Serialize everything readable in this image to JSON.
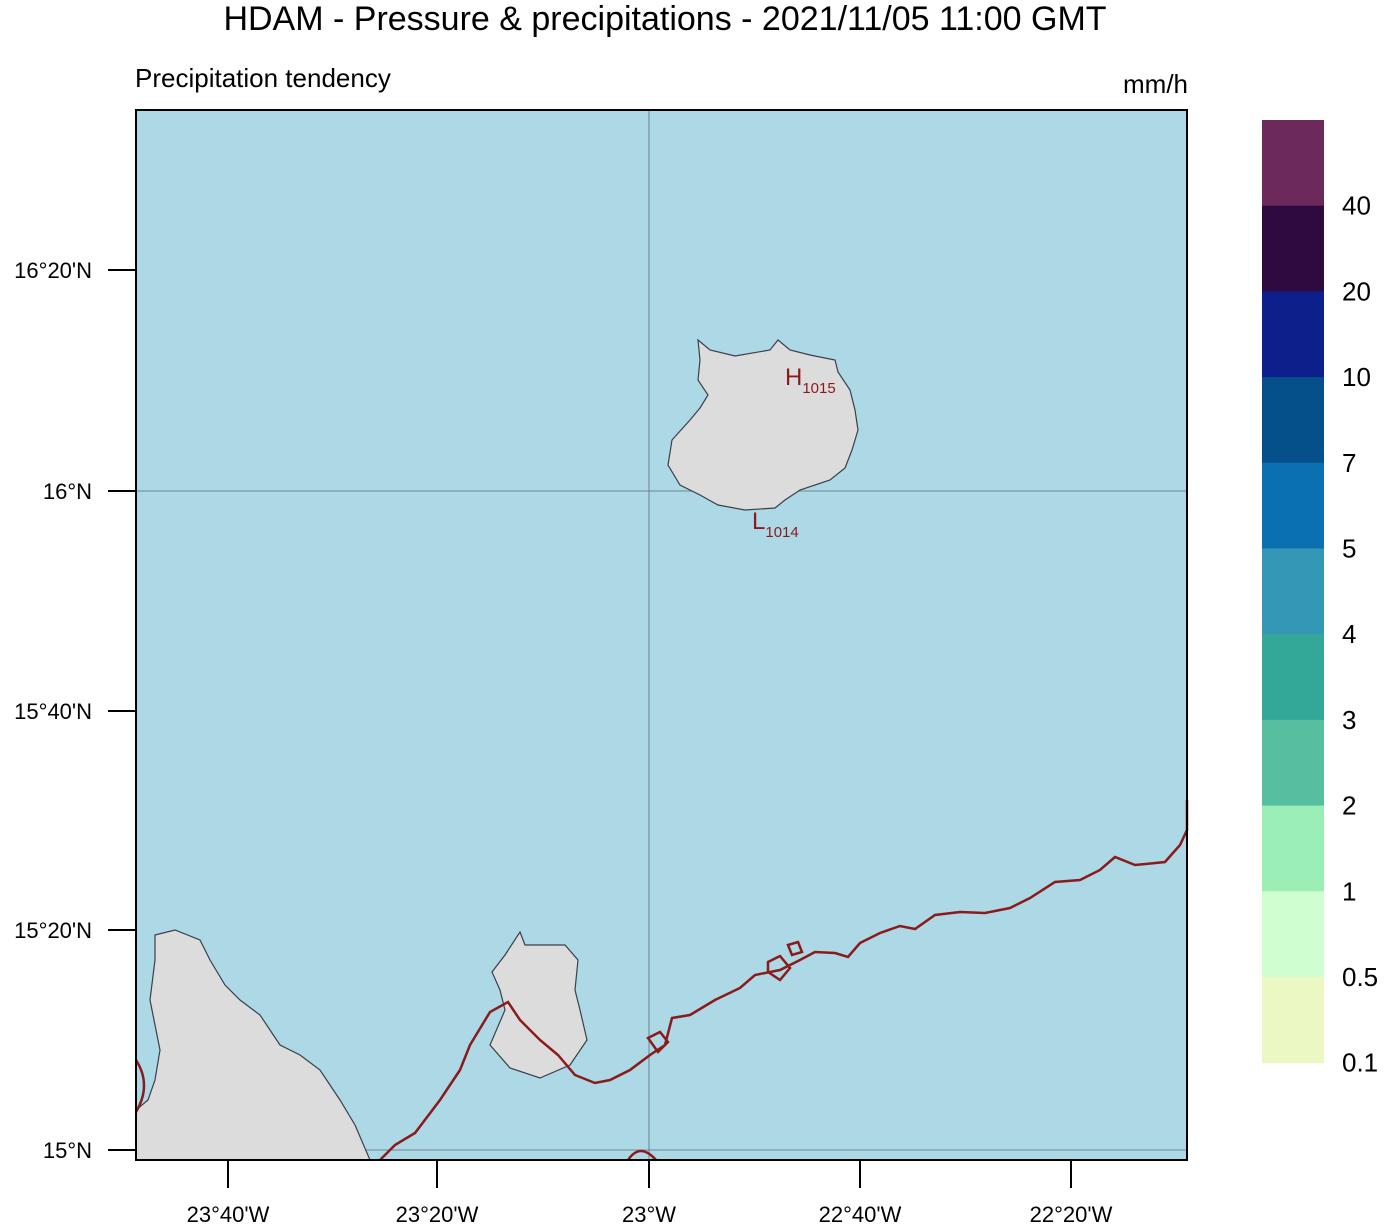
{
  "header": {
    "title": "HDAM - Pressure & precipitations  -  2021/11/05  11:00 GMT",
    "subtitle": "Precipitation tendency",
    "unit": "mm/h"
  },
  "map": {
    "lat_labels": [
      "16°20'N",
      "16°N",
      "15°40'N",
      "15°20'N",
      "15°N"
    ],
    "lon_labels": [
      "23°40'W",
      "23°20'W",
      "23°W",
      "22°40'W",
      "22°20'W"
    ],
    "pressure_labels": [
      {
        "symbol": "H",
        "value": "1015"
      },
      {
        "symbol": "L",
        "value": "1014"
      }
    ]
  },
  "colorbar": {
    "labels": [
      "40",
      "20",
      "10",
      "7",
      "5",
      "4",
      "3",
      "2",
      "1",
      "0.5",
      "0.1"
    ],
    "colors": [
      "#6b2a5a",
      "#2d0a40",
      "#0d1f8a",
      "#05508a",
      "#0a70b0",
      "#3497b5",
      "#34a898",
      "#55bfa0",
      "#9aeeb6",
      "#cfffd0",
      "#ecf8c4"
    ]
  }
}
